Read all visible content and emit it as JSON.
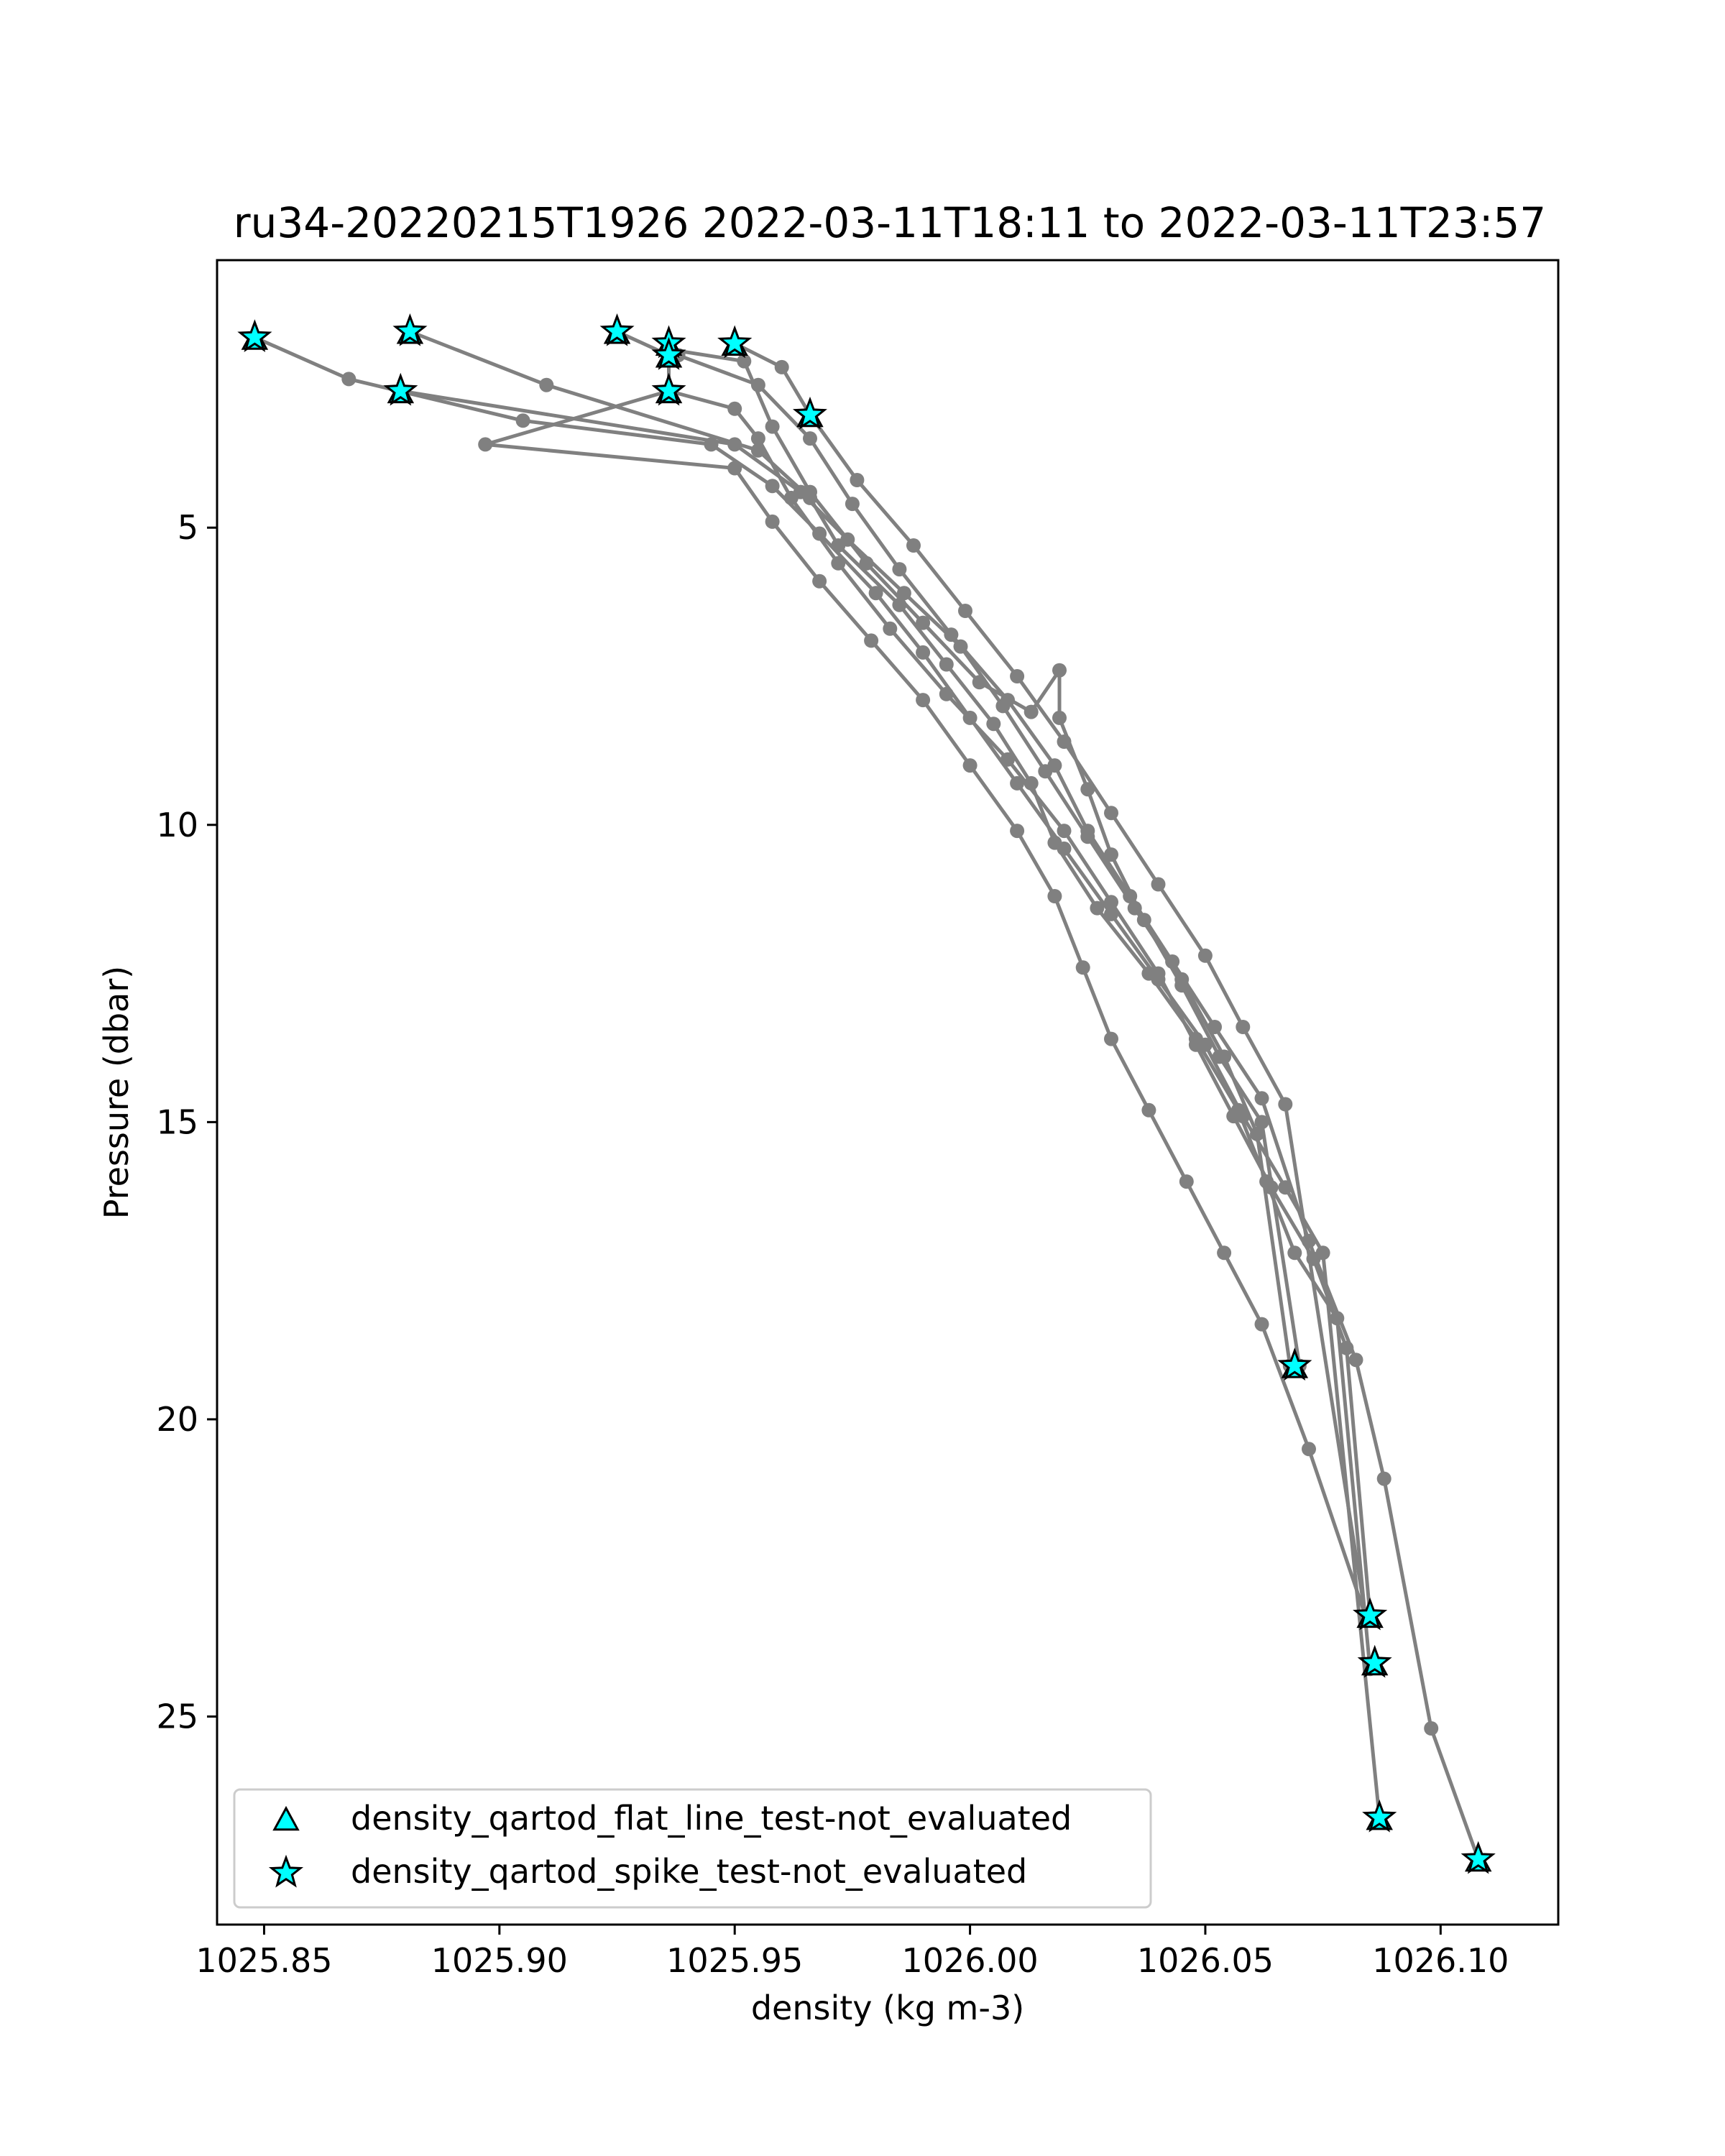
{
  "chart_data": {
    "type": "line",
    "title": "ru34-20220215T1926 2022-03-11T18:11 to 2022-03-11T23:57",
    "xlabel": "density (kg m-3)",
    "ylabel": "Pressure (dbar)",
    "xlim": [
      1025.84,
      1026.125
    ],
    "ylim": [
      28.5,
      0.5
    ],
    "y_inverted": true,
    "xticks": [
      1025.85,
      1025.9,
      1025.95,
      1026.0,
      1026.05,
      1026.1
    ],
    "xtick_labels": [
      "1025.85",
      "1025.90",
      "1025.95",
      "1026.00",
      "1026.05",
      "1026.10"
    ],
    "yticks": [
      5,
      10,
      15,
      20,
      25
    ],
    "ytick_labels": [
      "5",
      "10",
      "15",
      "20",
      "25"
    ],
    "grid": false,
    "legend_placement": "lower-left",
    "line_color": "#808080",
    "marker_fill": "#00ffff",
    "series": [
      {
        "x": [
          1025.881,
          1025.91,
          1025.955,
          1025.966,
          1025.972,
          1025.985,
          1025.995,
          1026.005,
          1026.013,
          1026.018,
          1026.027,
          1026.038,
          1026.048,
          1026.057,
          1026.063,
          1026.069,
          1026.078,
          1026.085
        ],
        "y": [
          1.7,
          2.6,
          3.7,
          4.5,
          5.3,
          6.3,
          7.3,
          8.3,
          9.3,
          10.3,
          11.4,
          12.5,
          13.6,
          14.8,
          16.0,
          17.2,
          18.3,
          24.2
        ]
      },
      {
        "x": [
          1025.848,
          1025.868,
          1025.905,
          1025.945,
          1025.958,
          1025.968,
          1025.98,
          1025.99,
          1026.0,
          1026.01,
          1026.02,
          1026.03,
          1026.04,
          1026.05,
          1026.058,
          1026.067,
          1026.075,
          1026.087
        ],
        "y": [
          1.8,
          2.5,
          3.2,
          3.6,
          4.3,
          5.1,
          6.1,
          7.1,
          8.2,
          9.3,
          10.4,
          11.5,
          12.6,
          13.7,
          14.9,
          16.1,
          17.2,
          26.7
        ]
      },
      {
        "x": [
          1025.879,
          1025.95,
          1025.964,
          1025.974,
          1025.986,
          1025.998,
          1026.007,
          1026.016,
          1026.025,
          1026.035,
          1026.045,
          1026.054,
          1026.061,
          1026.068
        ],
        "y": [
          2.7,
          3.6,
          4.4,
          5.2,
          6.1,
          7.0,
          8.0,
          9.1,
          10.2,
          11.4,
          12.6,
          13.9,
          15.2,
          19.1
        ]
      },
      {
        "x": [
          1025.925,
          1025.936,
          1025.936,
          1025.95,
          1025.955,
          1025.962,
          1025.972,
          1025.983,
          1025.995,
          1026.008,
          1026.02,
          1026.03,
          1026.04,
          1026.048,
          1026.056,
          1026.064,
          1026.073,
          1026.08,
          1026.085
        ],
        "y": [
          1.7,
          2.1,
          2.7,
          3.0,
          3.5,
          4.5,
          5.6,
          6.7,
          7.8,
          8.9,
          10.1,
          11.3,
          12.5,
          13.7,
          14.9,
          16.1,
          17.3,
          18.8,
          23.3
        ]
      },
      {
        "x": [
          1025.95,
          1025.96,
          1025.966,
          1025.976,
          1025.988,
          1025.999,
          1026.01,
          1026.02,
          1026.03,
          1026.04,
          1026.05,
          1026.058,
          1026.067,
          1026.084
        ],
        "y": [
          1.9,
          2.3,
          3.1,
          4.2,
          5.3,
          6.4,
          7.5,
          8.6,
          9.8,
          11.0,
          12.2,
          13.4,
          14.7,
          23.3
        ]
      },
      {
        "x": [
          1025.938,
          1025.955,
          1025.966,
          1025.975,
          1025.985,
          1025.996,
          1026.008,
          1026.018,
          1026.025,
          1026.034,
          1026.043,
          1026.052,
          1026.062,
          1026.072,
          1026.082,
          1026.088,
          1026.098,
          1026.108
        ],
        "y": [
          2.1,
          2.6,
          3.5,
          4.6,
          5.7,
          6.8,
          7.9,
          9.0,
          10.1,
          11.2,
          12.3,
          13.4,
          14.6,
          17.0,
          19.0,
          21.0,
          25.2,
          27.4
        ]
      },
      {
        "x": [
          1025.936,
          1025.952,
          1025.958,
          1025.966,
          1025.978,
          1025.99,
          1026.002,
          1026.013,
          1026.019,
          1026.019,
          1026.025,
          1026.03,
          1026.037,
          1026.045,
          1026.053,
          1026.062,
          1026.07
        ],
        "y": [
          2.0,
          2.2,
          3.3,
          4.4,
          5.6,
          6.6,
          7.6,
          8.1,
          7.4,
          8.2,
          9.4,
          10.5,
          11.6,
          12.7,
          13.9,
          15.0,
          19.1
        ]
      },
      {
        "x": [
          1025.936,
          1025.897,
          1025.95,
          1025.958,
          1025.968,
          1025.979,
          1025.99,
          1026.0,
          1026.01,
          1026.018,
          1026.024,
          1026.03,
          1026.038,
          1026.046,
          1026.054,
          1026.062,
          1026.072,
          1026.084
        ],
        "y": [
          2.7,
          3.6,
          4.0,
          4.9,
          5.9,
          6.9,
          7.9,
          9.0,
          10.1,
          11.2,
          12.4,
          13.6,
          14.8,
          16.0,
          17.2,
          18.4,
          20.5,
          23.3
        ]
      }
    ],
    "legend": [
      {
        "label": "density_qartod_flat_line_test-not_evaluated",
        "marker": "triangle"
      },
      {
        "label": "density_qartod_spike_test-not_evaluated",
        "marker": "star"
      }
    ],
    "flagged_points": [
      {
        "x": 1025.848,
        "y": 1.8
      },
      {
        "x": 1025.881,
        "y": 1.7
      },
      {
        "x": 1025.879,
        "y": 2.7
      },
      {
        "x": 1025.925,
        "y": 1.7
      },
      {
        "x": 1025.936,
        "y": 1.9
      },
      {
        "x": 1025.936,
        "y": 2.1
      },
      {
        "x": 1025.936,
        "y": 2.7
      },
      {
        "x": 1025.95,
        "y": 1.9
      },
      {
        "x": 1025.966,
        "y": 3.1
      },
      {
        "x": 1026.069,
        "y": 19.1
      },
      {
        "x": 1026.085,
        "y": 23.3
      },
      {
        "x": 1026.086,
        "y": 24.1
      },
      {
        "x": 1026.087,
        "y": 26.7
      },
      {
        "x": 1026.108,
        "y": 27.4
      }
    ]
  }
}
